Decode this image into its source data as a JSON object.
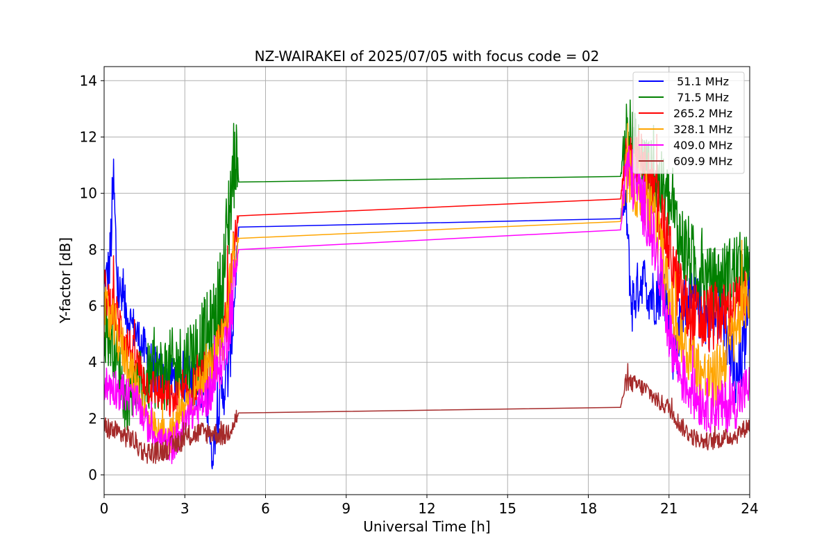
{
  "chart_data": {
    "type": "line",
    "title": "NZ-WAIRAKEI of 2025/07/05 with focus code = 02",
    "xlabel": "Universal Time [h]",
    "ylabel": "Y-factor [dB]",
    "xlim": [
      0,
      24
    ],
    "ylim": [
      -0.7,
      14.5
    ],
    "xticks": [
      0,
      3,
      6,
      9,
      12,
      15,
      18,
      21,
      24
    ],
    "yticks": [
      0,
      2,
      4,
      6,
      8,
      10,
      12,
      14
    ],
    "grid": true,
    "legend_position": "top-right",
    "series": [
      {
        "name": " 51.1 MHz",
        "color": "#0000ff",
        "points": [
          [
            0,
            6.8
          ],
          [
            0.2,
            7.3
          ],
          [
            0.35,
            10.3
          ],
          [
            0.5,
            6.6
          ],
          [
            0.9,
            5.6
          ],
          [
            1.3,
            4.8
          ],
          [
            1.8,
            3.8
          ],
          [
            2.3,
            3.3
          ],
          [
            2.8,
            3.5
          ],
          [
            3.3,
            3.4
          ],
          [
            3.8,
            3.0
          ],
          [
            4.0,
            0.5
          ],
          [
            4.3,
            2.6
          ],
          [
            4.6,
            3.6
          ],
          [
            4.8,
            5.6
          ],
          [
            5.0,
            8.8
          ],
          [
            19.2,
            9.1
          ],
          [
            19.4,
            9.6
          ],
          [
            19.6,
            6.0
          ],
          [
            20.0,
            7.0
          ],
          [
            20.4,
            6.3
          ],
          [
            20.8,
            6.8
          ],
          [
            21.2,
            4.2
          ],
          [
            21.6,
            6.2
          ],
          [
            22.0,
            6.0
          ],
          [
            22.5,
            5.5
          ],
          [
            23.0,
            5.8
          ],
          [
            23.5,
            3.0
          ],
          [
            23.8,
            4.5
          ],
          [
            24.0,
            7.2
          ]
        ],
        "band": [
          0.7,
          1.4,
          1.8,
          1.2,
          1.0,
          1.0,
          1.1,
          1.0,
          1.2,
          1.2,
          1.4,
          0.6,
          1.2,
          1.4,
          1.5,
          0,
          0,
          0.8,
          1.4,
          1.2,
          1.4,
          1.4,
          1.6,
          1.4,
          1.4,
          1.4,
          1.4,
          1.6,
          1.6,
          0.6
        ]
      },
      {
        "name": " 71.5 MHz",
        "color": "#008000",
        "points": [
          [
            0,
            5.3
          ],
          [
            0.4,
            4.5
          ],
          [
            0.8,
            2.6
          ],
          [
            1.2,
            3.2
          ],
          [
            1.6,
            3.4
          ],
          [
            2.0,
            3.6
          ],
          [
            2.5,
            3.7
          ],
          [
            3.0,
            4.0
          ],
          [
            3.5,
            4.4
          ],
          [
            4.0,
            5.0
          ],
          [
            4.4,
            6.5
          ],
          [
            4.7,
            10.0
          ],
          [
            4.9,
            11.6
          ],
          [
            5.0,
            10.4
          ],
          [
            19.2,
            10.6
          ],
          [
            19.4,
            12.2
          ],
          [
            19.8,
            11.5
          ],
          [
            20.2,
            10.8
          ],
          [
            20.6,
            10.4
          ],
          [
            21.0,
            9.6
          ],
          [
            21.5,
            8.2
          ],
          [
            22.0,
            7.3
          ],
          [
            22.5,
            6.8
          ],
          [
            23.0,
            7.0
          ],
          [
            23.5,
            7.3
          ],
          [
            24.0,
            7.6
          ]
        ],
        "band": [
          1.6,
          1.4,
          1.4,
          1.4,
          1.6,
          1.6,
          1.9,
          1.9,
          2.0,
          2.2,
          2.4,
          2.4,
          2.0,
          0,
          0,
          1.6,
          1.6,
          1.6,
          1.6,
          1.8,
          1.8,
          1.8,
          1.6,
          1.6,
          1.8,
          1.0
        ]
      },
      {
        "name": "265.2 MHz",
        "color": "#ff0000",
        "points": [
          [
            0,
            6.6
          ],
          [
            0.4,
            5.8
          ],
          [
            0.8,
            4.8
          ],
          [
            1.2,
            4.0
          ],
          [
            1.6,
            3.2
          ],
          [
            2.0,
            3.0
          ],
          [
            2.5,
            2.6
          ],
          [
            3.0,
            2.8
          ],
          [
            3.5,
            3.3
          ],
          [
            4.0,
            3.7
          ],
          [
            4.5,
            5.2
          ],
          [
            4.8,
            8.0
          ],
          [
            5.0,
            9.2
          ],
          [
            19.2,
            9.8
          ],
          [
            19.4,
            11.0
          ],
          [
            19.8,
            11.4
          ],
          [
            20.2,
            10.6
          ],
          [
            20.6,
            9.6
          ],
          [
            21.0,
            8.0
          ],
          [
            21.4,
            6.4
          ],
          [
            21.8,
            5.6
          ],
          [
            22.2,
            5.5
          ],
          [
            22.6,
            5.6
          ],
          [
            23.0,
            5.7
          ],
          [
            23.5,
            6.0
          ],
          [
            24.0,
            6.5
          ]
        ],
        "band": [
          1.0,
          1.0,
          1.0,
          0.9,
          0.9,
          0.9,
          0.9,
          0.9,
          0.9,
          1.0,
          1.2,
          1.6,
          0,
          0,
          1.2,
          1.4,
          1.4,
          1.4,
          1.4,
          1.6,
          1.6,
          1.6,
          1.6,
          1.4,
          1.4,
          1.0
        ]
      },
      {
        "name": "328.1 MHz",
        "color": "#ffa500",
        "points": [
          [
            0,
            5.8
          ],
          [
            0.4,
            5.2
          ],
          [
            0.8,
            4.2
          ],
          [
            1.2,
            3.2
          ],
          [
            1.6,
            2.0
          ],
          [
            2.0,
            1.4
          ],
          [
            2.5,
            1.4
          ],
          [
            3.0,
            2.4
          ],
          [
            3.5,
            3.2
          ],
          [
            4.0,
            3.8
          ],
          [
            4.5,
            5.2
          ],
          [
            4.8,
            7.5
          ],
          [
            5.0,
            8.4
          ],
          [
            19.2,
            9.0
          ],
          [
            19.4,
            10.8
          ],
          [
            19.8,
            10.2
          ],
          [
            20.2,
            9.6
          ],
          [
            20.6,
            8.6
          ],
          [
            21.0,
            6.2
          ],
          [
            21.4,
            4.8
          ],
          [
            21.8,
            4.2
          ],
          [
            22.2,
            3.6
          ],
          [
            22.6,
            3.2
          ],
          [
            23.0,
            4.0
          ],
          [
            23.5,
            5.2
          ],
          [
            24.0,
            6.5
          ]
        ],
        "band": [
          1.2,
          1.2,
          1.1,
          1.0,
          0.9,
          0.8,
          0.9,
          0.9,
          0.9,
          1.0,
          1.2,
          1.5,
          0,
          0,
          1.4,
          1.4,
          1.4,
          1.4,
          1.4,
          1.4,
          1.4,
          1.4,
          1.4,
          1.4,
          1.4,
          1.2
        ]
      },
      {
        "name": "409.0 MHz",
        "color": "#ff00ff",
        "points": [
          [
            0,
            3.2
          ],
          [
            0.4,
            3.1
          ],
          [
            0.8,
            2.9
          ],
          [
            1.2,
            2.6
          ],
          [
            1.6,
            1.8
          ],
          [
            2.0,
            1.3
          ],
          [
            2.5,
            1.0
          ],
          [
            3.0,
            1.8
          ],
          [
            3.5,
            2.4
          ],
          [
            4.0,
            3.0
          ],
          [
            4.5,
            4.5
          ],
          [
            4.8,
            6.5
          ],
          [
            5.0,
            8.0
          ],
          [
            19.2,
            8.7
          ],
          [
            19.4,
            11.0
          ],
          [
            19.8,
            10.2
          ],
          [
            20.2,
            9.2
          ],
          [
            20.6,
            7.5
          ],
          [
            21.0,
            5.2
          ],
          [
            21.4,
            3.6
          ],
          [
            21.8,
            3.0
          ],
          [
            22.2,
            2.6
          ],
          [
            22.6,
            2.4
          ],
          [
            23.0,
            2.4
          ],
          [
            23.5,
            2.6
          ],
          [
            24.0,
            3.2
          ]
        ],
        "band": [
          0.9,
          0.9,
          0.9,
          0.8,
          0.8,
          0.7,
          0.8,
          0.8,
          0.8,
          1.0,
          1.2,
          1.6,
          0,
          0,
          1.4,
          1.4,
          1.4,
          1.4,
          1.4,
          1.2,
          1.2,
          1.2,
          1.2,
          1.2,
          1.2,
          1.0
        ]
      },
      {
        "name": "609.9 MHz",
        "color": "#a52a2a",
        "points": [
          [
            0,
            1.7
          ],
          [
            0.5,
            1.5
          ],
          [
            1.0,
            1.3
          ],
          [
            1.5,
            0.8
          ],
          [
            2.0,
            0.8
          ],
          [
            2.5,
            1.0
          ],
          [
            3.0,
            1.3
          ],
          [
            3.5,
            1.5
          ],
          [
            4.0,
            1.5
          ],
          [
            4.5,
            1.4
          ],
          [
            4.9,
            2.0
          ],
          [
            5.0,
            2.2
          ],
          [
            19.2,
            2.4
          ],
          [
            19.4,
            3.3
          ],
          [
            19.8,
            3.2
          ],
          [
            20.2,
            3.0
          ],
          [
            20.6,
            2.6
          ],
          [
            21.0,
            2.4
          ],
          [
            21.4,
            1.8
          ],
          [
            21.8,
            1.4
          ],
          [
            22.2,
            1.2
          ],
          [
            22.6,
            1.2
          ],
          [
            23.0,
            1.3
          ],
          [
            23.5,
            1.4
          ],
          [
            24.0,
            1.8
          ]
        ],
        "band": [
          0.5,
          0.5,
          0.5,
          0.5,
          0.5,
          0.5,
          0.5,
          0.5,
          0.5,
          0.5,
          0.6,
          0,
          0,
          0.4,
          0.4,
          0.4,
          0.4,
          0.4,
          0.4,
          0.4,
          0.4,
          0.4,
          0.4,
          0.4,
          0.4
        ]
      }
    ]
  }
}
